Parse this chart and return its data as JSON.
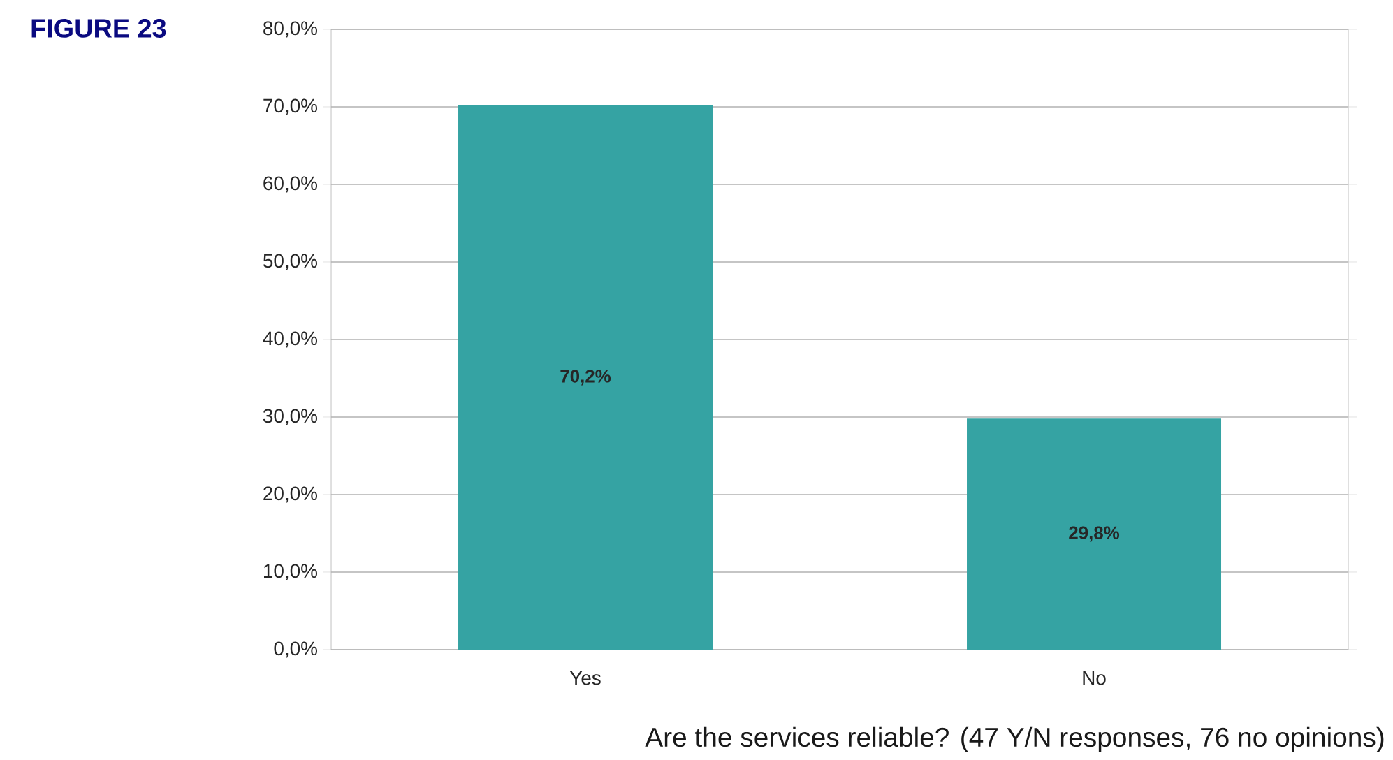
{
  "chart_data": {
    "type": "bar",
    "title": "FIGURE 23",
    "xlabel": "Are the services reliable? (47 Y/N responses, 76 no opinions)",
    "categories": [
      "Yes",
      "No"
    ],
    "values": [
      70.2,
      29.8
    ],
    "value_labels": [
      "70,2%",
      "29,8%"
    ],
    "color": "#35a3a3",
    "ylim": [
      0,
      80
    ],
    "yticks": [
      {
        "value": 0,
        "label": "0,0%"
      },
      {
        "value": 10,
        "label": "10,0%"
      },
      {
        "value": 20,
        "label": "20,0%"
      },
      {
        "value": 30,
        "label": "30,0%"
      },
      {
        "value": 40,
        "label": "40,0%"
      },
      {
        "value": 50,
        "label": "50,0%"
      },
      {
        "value": 60,
        "label": "60,0%"
      },
      {
        "value": 70,
        "label": "70,0%"
      },
      {
        "value": 80,
        "label": "80,0%"
      }
    ],
    "grid": "y"
  }
}
